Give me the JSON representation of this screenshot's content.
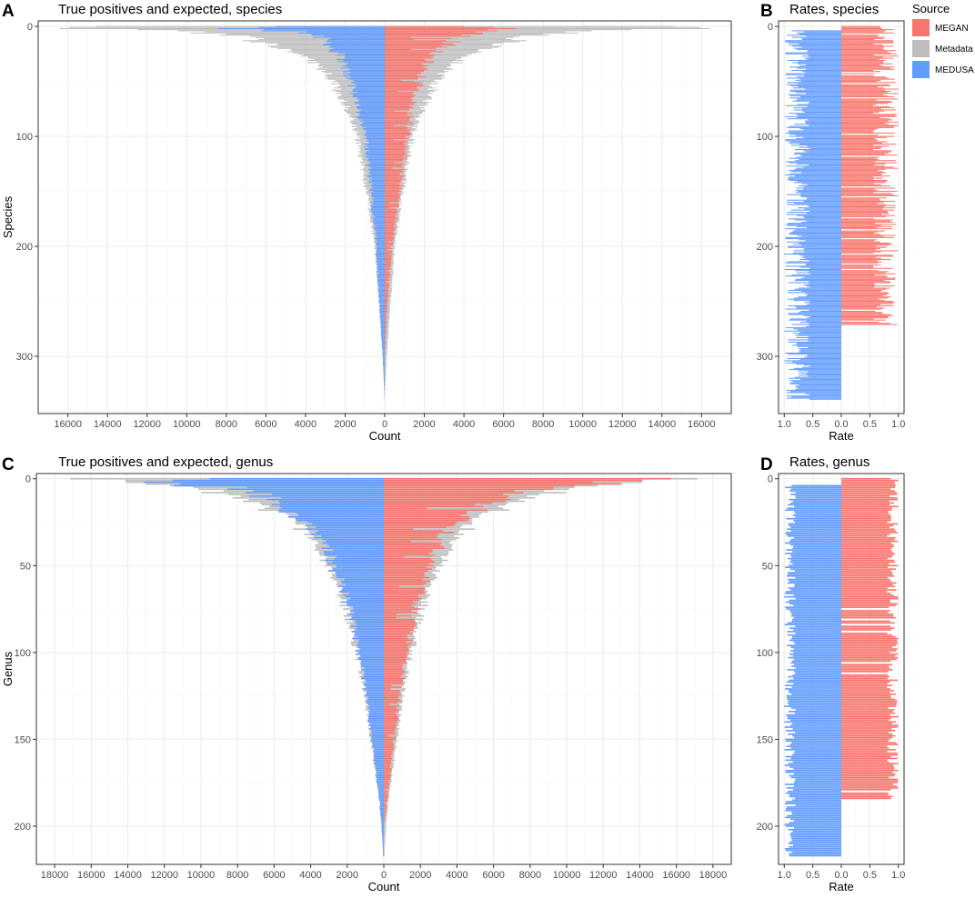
{
  "colors": {
    "MEGAN": "#F8766D",
    "Metadata": "#BEBEBE",
    "MEDUSA": "#619CFF",
    "panel_bg": "#FFFFFF",
    "grid_major": "#EBEBEB",
    "grid_minor": "#F5F5F5",
    "border": "#333333"
  },
  "legend": {
    "title": "Source",
    "placement": "top-right",
    "items": [
      "MEGAN",
      "Metadata",
      "MEDUSA"
    ]
  },
  "chart_data": [
    {
      "tag": "A",
      "type": "bar",
      "orientation": "horizontal-diverging",
      "title": "True positives and expected, species",
      "xlabel": "Count",
      "ylabel": "Species",
      "xlim": [
        -17500,
        17500
      ],
      "ylim": [
        -5,
        352
      ],
      "x_ticks": [
        -16000,
        -14000,
        -12000,
        -10000,
        -8000,
        -6000,
        -4000,
        -2000,
        0,
        2000,
        4000,
        6000,
        8000,
        10000,
        12000,
        14000,
        16000
      ],
      "x_tick_labels": [
        "16000",
        "14000",
        "12000",
        "10000",
        "8000",
        "6000",
        "4000",
        "2000",
        "0",
        "2000",
        "4000",
        "6000",
        "8000",
        "10000",
        "12000",
        "14000",
        "16000"
      ],
      "y_ticks": [
        0,
        100,
        200,
        300
      ],
      "y_tick_labels": [
        "0",
        "100",
        "200",
        "300"
      ],
      "grid": true,
      "n_items": 340,
      "sample_index": [
        0,
        2,
        5,
        10,
        20,
        30,
        50,
        75,
        100,
        150,
        200,
        250,
        300,
        340
      ],
      "series": [
        {
          "name": "MEGAN",
          "side": "right",
          "values": [
            3600,
            6600,
            5400,
            3900,
            3000,
            2300,
            1800,
            1400,
            1200,
            800,
            400,
            150,
            0,
            0
          ]
        },
        {
          "name": "Metadata",
          "side": "both",
          "values": [
            15400,
            15000,
            9500,
            7000,
            5000,
            3800,
            2600,
            1900,
            1400,
            900,
            500,
            300,
            100,
            0
          ]
        },
        {
          "name": "MEDUSA",
          "side": "left",
          "values": [
            5800,
            9000,
            4200,
            3300,
            2700,
            2200,
            1800,
            1400,
            1000,
            700,
            450,
            300,
            180,
            60
          ]
        }
      ]
    },
    {
      "tag": "B",
      "type": "bar",
      "orientation": "horizontal-diverging",
      "title": "Rates, species",
      "xlabel": "Rate",
      "xlim": [
        -1.1,
        1.1
      ],
      "ylim": [
        -5,
        352
      ],
      "x_ticks": [
        -1.0,
        -0.5,
        0.0,
        0.5,
        1.0
      ],
      "x_tick_labels": [
        "1.0",
        "0.5",
        "0.0",
        "0.5",
        "1.0"
      ],
      "y_ticks": [
        0,
        100,
        200,
        300
      ],
      "y_tick_labels": [
        "0",
        "100",
        "200",
        "300"
      ],
      "grid": true,
      "n_items": 340,
      "series": [
        {
          "name": "MEGAN",
          "side": "right",
          "range": [
            0.55,
            1.0
          ],
          "extent": 272
        },
        {
          "name": "MEDUSA",
          "side": "left",
          "range": [
            0.55,
            1.0
          ],
          "extent": 340
        }
      ]
    },
    {
      "tag": "C",
      "type": "bar",
      "orientation": "horizontal-diverging",
      "title": "True positives and expected, genus",
      "xlabel": "Count",
      "ylabel": "Genus",
      "xlim": [
        -19000,
        19000
      ],
      "ylim": [
        -3,
        222
      ],
      "x_ticks": [
        -18000,
        -16000,
        -14000,
        -12000,
        -10000,
        -8000,
        -6000,
        -4000,
        -2000,
        0,
        2000,
        4000,
        6000,
        8000,
        10000,
        12000,
        14000,
        16000,
        18000
      ],
      "x_tick_labels": [
        "18000",
        "16000",
        "14000",
        "12000",
        "10000",
        "8000",
        "6000",
        "4000",
        "2000",
        "0",
        "2000",
        "4000",
        "6000",
        "8000",
        "10000",
        "12000",
        "14000",
        "16000",
        "18000"
      ],
      "y_ticks": [
        0,
        50,
        100,
        150,
        200
      ],
      "y_tick_labels": [
        "0",
        "50",
        "100",
        "150",
        "200"
      ],
      "grid": true,
      "n_items": 218,
      "sample_index": [
        0,
        2,
        5,
        10,
        20,
        30,
        50,
        75,
        100,
        125,
        150,
        175,
        185,
        200,
        218
      ],
      "series": [
        {
          "name": "MEGAN",
          "side": "right",
          "values": [
            15500,
            13000,
            9000,
            7000,
            4800,
            3600,
            2600,
            1800,
            1300,
            900,
            600,
            300,
            200,
            0,
            0
          ]
        },
        {
          "name": "Metadata",
          "side": "both",
          "values": [
            18000,
            14000,
            10500,
            8000,
            5700,
            4300,
            3000,
            2100,
            1500,
            1000,
            700,
            400,
            250,
            120,
            30
          ]
        },
        {
          "name": "MEDUSA",
          "side": "left",
          "values": [
            11000,
            13000,
            9000,
            7000,
            5200,
            4000,
            2800,
            2000,
            1400,
            1000,
            700,
            400,
            300,
            150,
            40
          ]
        }
      ]
    },
    {
      "tag": "D",
      "type": "bar",
      "orientation": "horizontal-diverging",
      "title": "Rates, genus",
      "xlabel": "Rate",
      "xlim": [
        -1.1,
        1.1
      ],
      "ylim": [
        -3,
        222
      ],
      "x_ticks": [
        -1.0,
        -0.5,
        0.0,
        0.5,
        1.0
      ],
      "x_tick_labels": [
        "1.0",
        "0.5",
        "0.0",
        "0.5",
        "1.0"
      ],
      "y_ticks": [
        0,
        50,
        100,
        150,
        200
      ],
      "y_tick_labels": [
        "0",
        "50",
        "100",
        "150",
        "200"
      ],
      "grid": true,
      "n_items": 218,
      "series": [
        {
          "name": "MEGAN",
          "side": "right",
          "range": [
            0.8,
            1.0
          ],
          "extent": 185
        },
        {
          "name": "MEDUSA",
          "side": "left",
          "range": [
            0.8,
            1.0
          ],
          "extent": 218
        }
      ]
    }
  ]
}
